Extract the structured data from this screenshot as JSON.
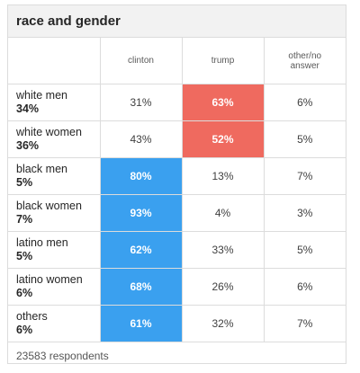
{
  "title": "race and gender",
  "columns": [
    "clinton",
    "trump",
    "other/no\nanswer"
  ],
  "colors": {
    "clinton_lead": "#3aa0ef",
    "trump_lead": "#ef6a5f"
  },
  "rows": [
    {
      "group": "white men",
      "share": "34%",
      "values": [
        "31%",
        "63%",
        "6%"
      ],
      "lead": 1
    },
    {
      "group": "white women",
      "share": "36%",
      "values": [
        "43%",
        "52%",
        "5%"
      ],
      "lead": 1
    },
    {
      "group": "black men",
      "share": "5%",
      "values": [
        "80%",
        "13%",
        "7%"
      ],
      "lead": 0
    },
    {
      "group": "black women",
      "share": "7%",
      "values": [
        "93%",
        "4%",
        "3%"
      ],
      "lead": 0
    },
    {
      "group": "latino men",
      "share": "5%",
      "values": [
        "62%",
        "33%",
        "5%"
      ],
      "lead": 0
    },
    {
      "group": "latino women",
      "share": "6%",
      "values": [
        "68%",
        "26%",
        "6%"
      ],
      "lead": 0
    },
    {
      "group": "others",
      "share": "6%",
      "values": [
        "61%",
        "32%",
        "7%"
      ],
      "lead": 0
    }
  ],
  "footer": "23583 respondents"
}
